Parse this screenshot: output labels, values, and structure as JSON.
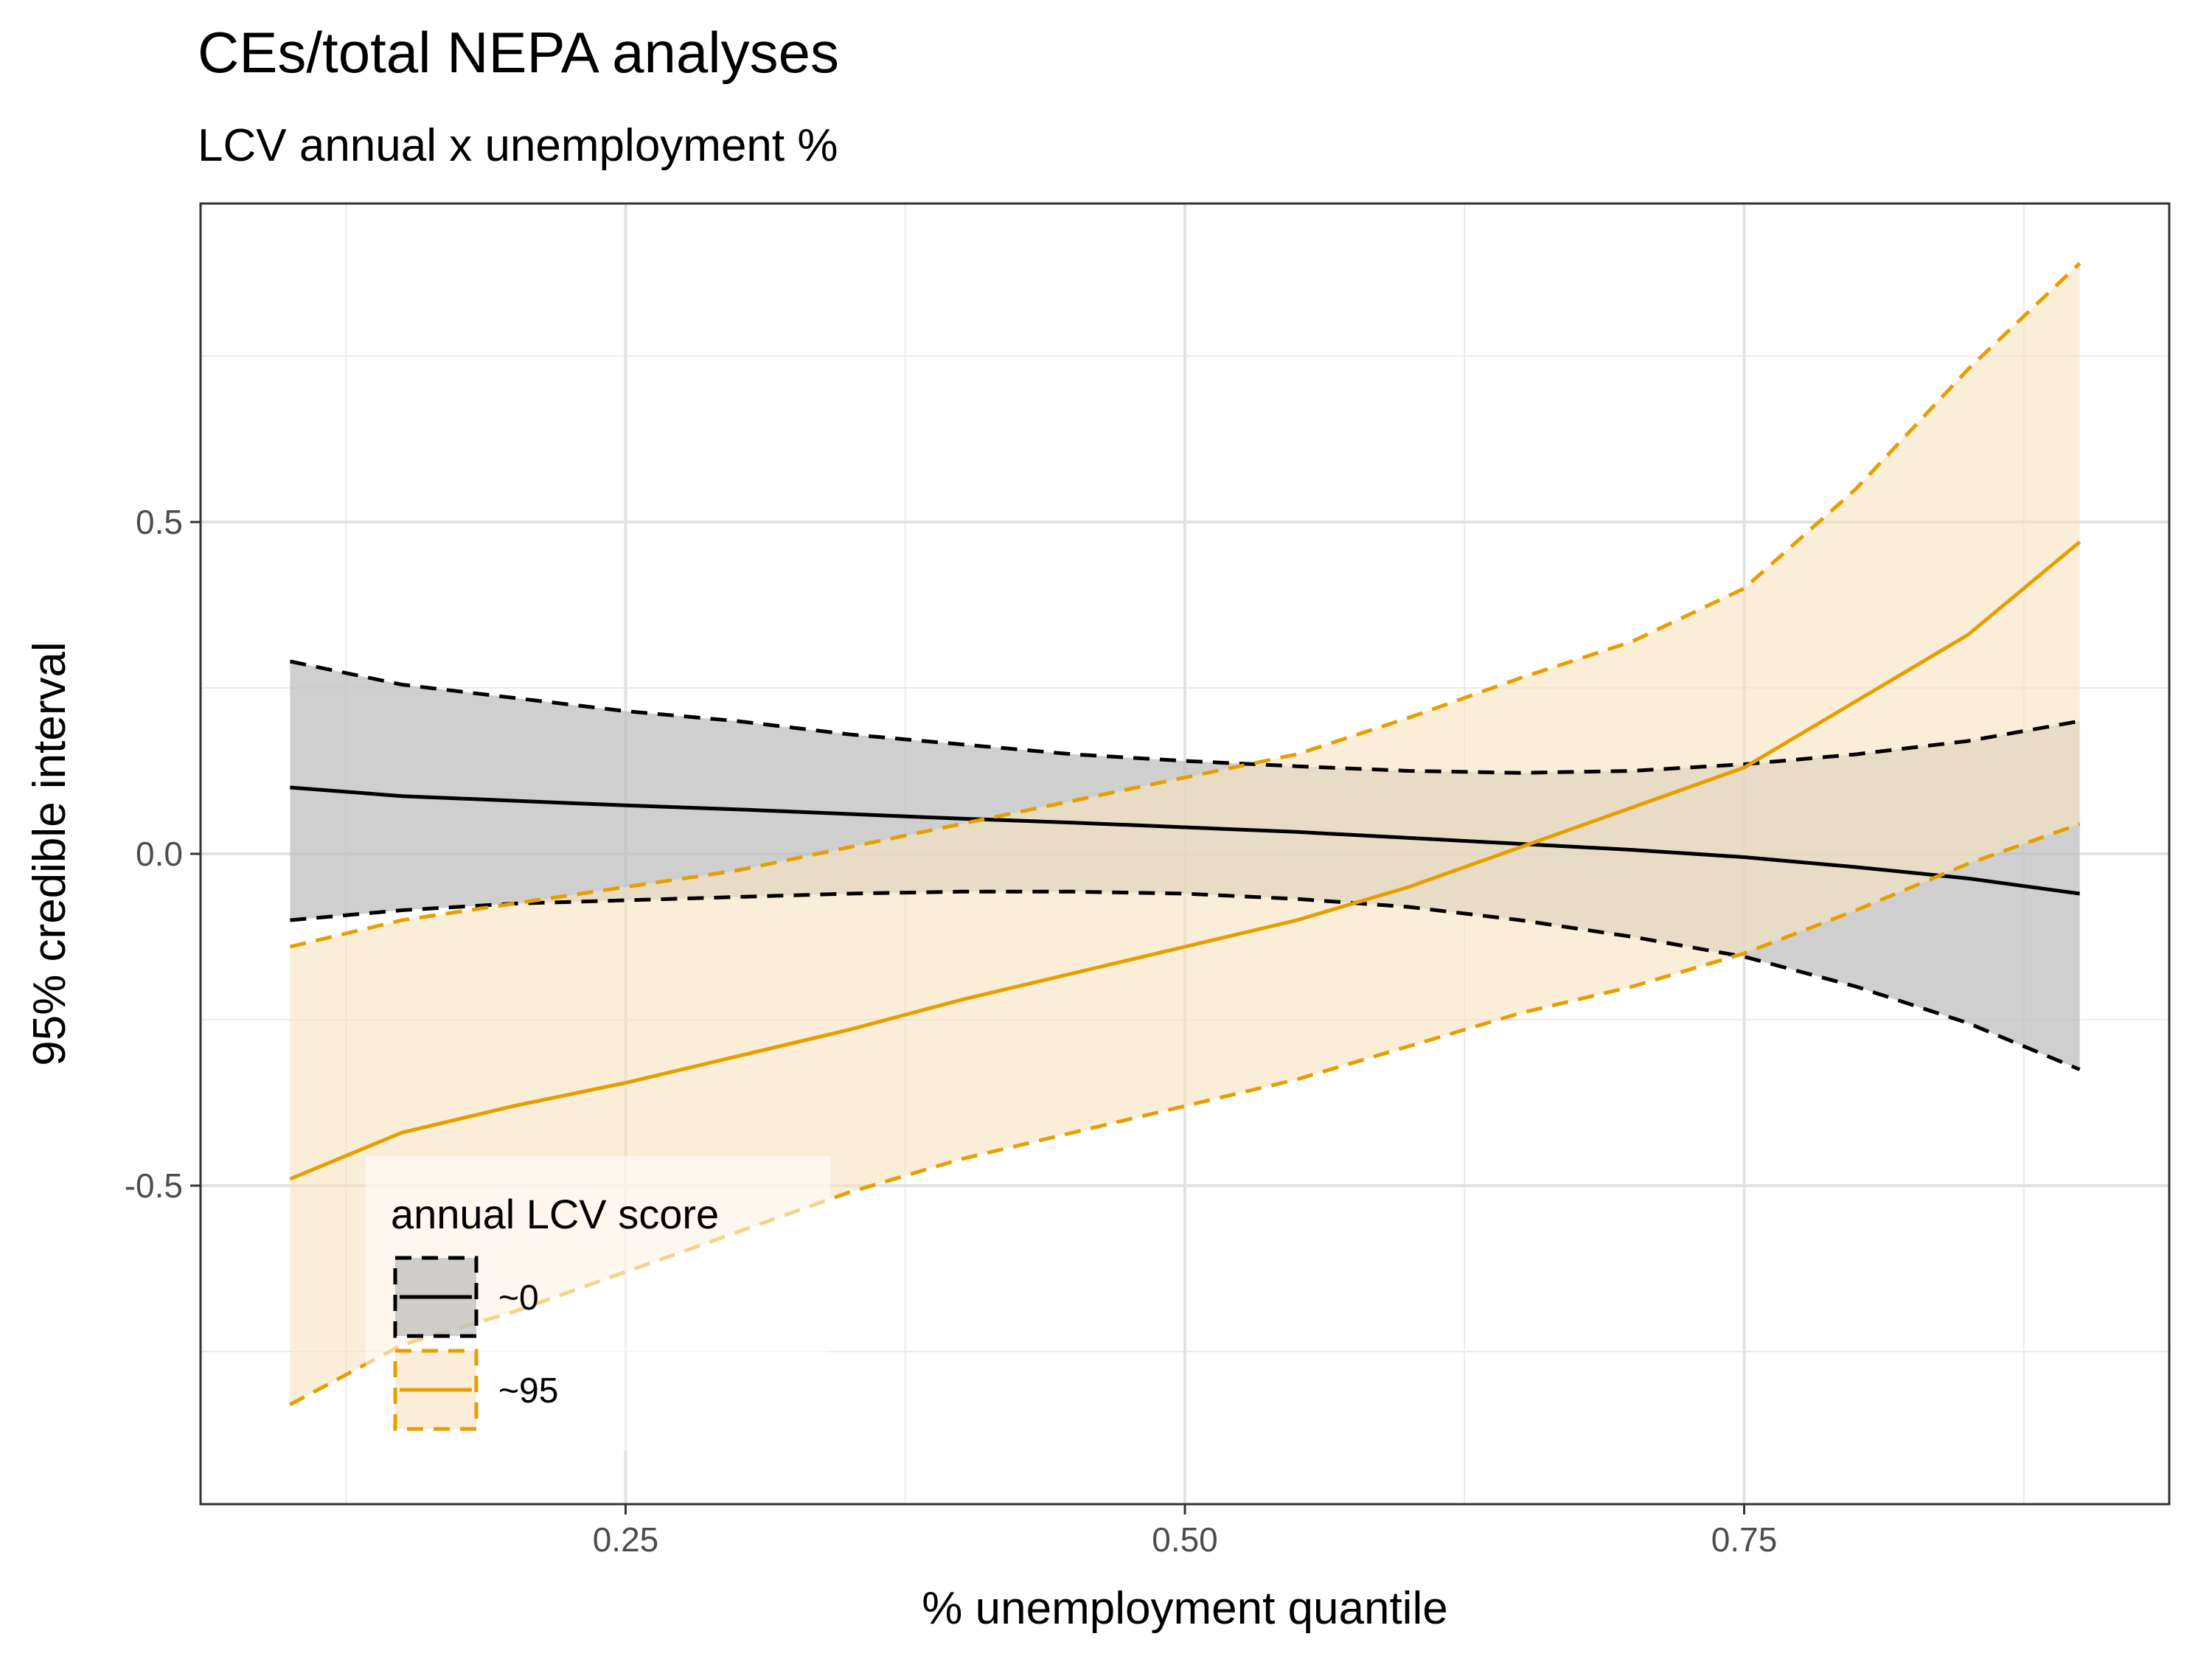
{
  "chart_data": {
    "type": "line",
    "title": "CEs/total NEPA analyses",
    "subtitle": "LCV annual x unemployment %",
    "xlabel": "% unemployment quantile",
    "ylabel": "95% credible interval",
    "xlim": [
      0.06,
      0.94
    ],
    "ylim": [
      -0.98,
      0.98
    ],
    "x_ticks": [
      0.25,
      0.5,
      0.75
    ],
    "x_tick_labels": [
      "0.25",
      "0.50",
      "0.75"
    ],
    "y_ticks": [
      -0.5,
      0.0,
      0.5
    ],
    "y_tick_labels": [
      "-0.5",
      "0.0",
      "0.5"
    ],
    "grid": true,
    "legend": {
      "title": "annual LCV score",
      "position": "bottom-left"
    },
    "x": [
      0.1,
      0.15,
      0.2,
      0.25,
      0.3,
      0.35,
      0.4,
      0.45,
      0.5,
      0.55,
      0.6,
      0.65,
      0.7,
      0.75,
      0.8,
      0.85,
      0.9
    ],
    "series": [
      {
        "name": "~0",
        "color": "#000000",
        "fill": "#bdbdbd",
        "mean": [
          0.1,
          0.087,
          0.08,
          0.073,
          0.067,
          0.06,
          0.053,
          0.047,
          0.04,
          0.033,
          0.024,
          0.015,
          0.006,
          -0.005,
          -0.02,
          -0.037,
          -0.06
        ],
        "lower": [
          -0.1,
          -0.085,
          -0.075,
          -0.07,
          -0.065,
          -0.06,
          -0.057,
          -0.057,
          -0.06,
          -0.068,
          -0.08,
          -0.1,
          -0.125,
          -0.155,
          -0.2,
          -0.255,
          -0.325
        ],
        "upper": [
          0.29,
          0.255,
          0.235,
          0.215,
          0.2,
          0.18,
          0.165,
          0.15,
          0.14,
          0.132,
          0.125,
          0.122,
          0.125,
          0.135,
          0.15,
          0.17,
          0.2
        ]
      },
      {
        "name": "~95",
        "color": "#E69F00",
        "fill": "#f7e4c2",
        "mean": [
          -0.49,
          -0.42,
          -0.38,
          -0.345,
          -0.305,
          -0.265,
          -0.22,
          -0.18,
          -0.14,
          -0.1,
          -0.05,
          0.01,
          0.07,
          0.13,
          0.23,
          0.33,
          0.47
        ],
        "lower": [
          -0.83,
          -0.74,
          -0.69,
          -0.63,
          -0.57,
          -0.51,
          -0.46,
          -0.42,
          -0.38,
          -0.34,
          -0.29,
          -0.24,
          -0.2,
          -0.15,
          -0.085,
          -0.015,
          0.045
        ],
        "upper": [
          -0.14,
          -0.1,
          -0.075,
          -0.05,
          -0.025,
          0.01,
          0.045,
          0.08,
          0.115,
          0.15,
          0.205,
          0.265,
          0.32,
          0.4,
          0.55,
          0.73,
          0.89
        ]
      }
    ]
  }
}
